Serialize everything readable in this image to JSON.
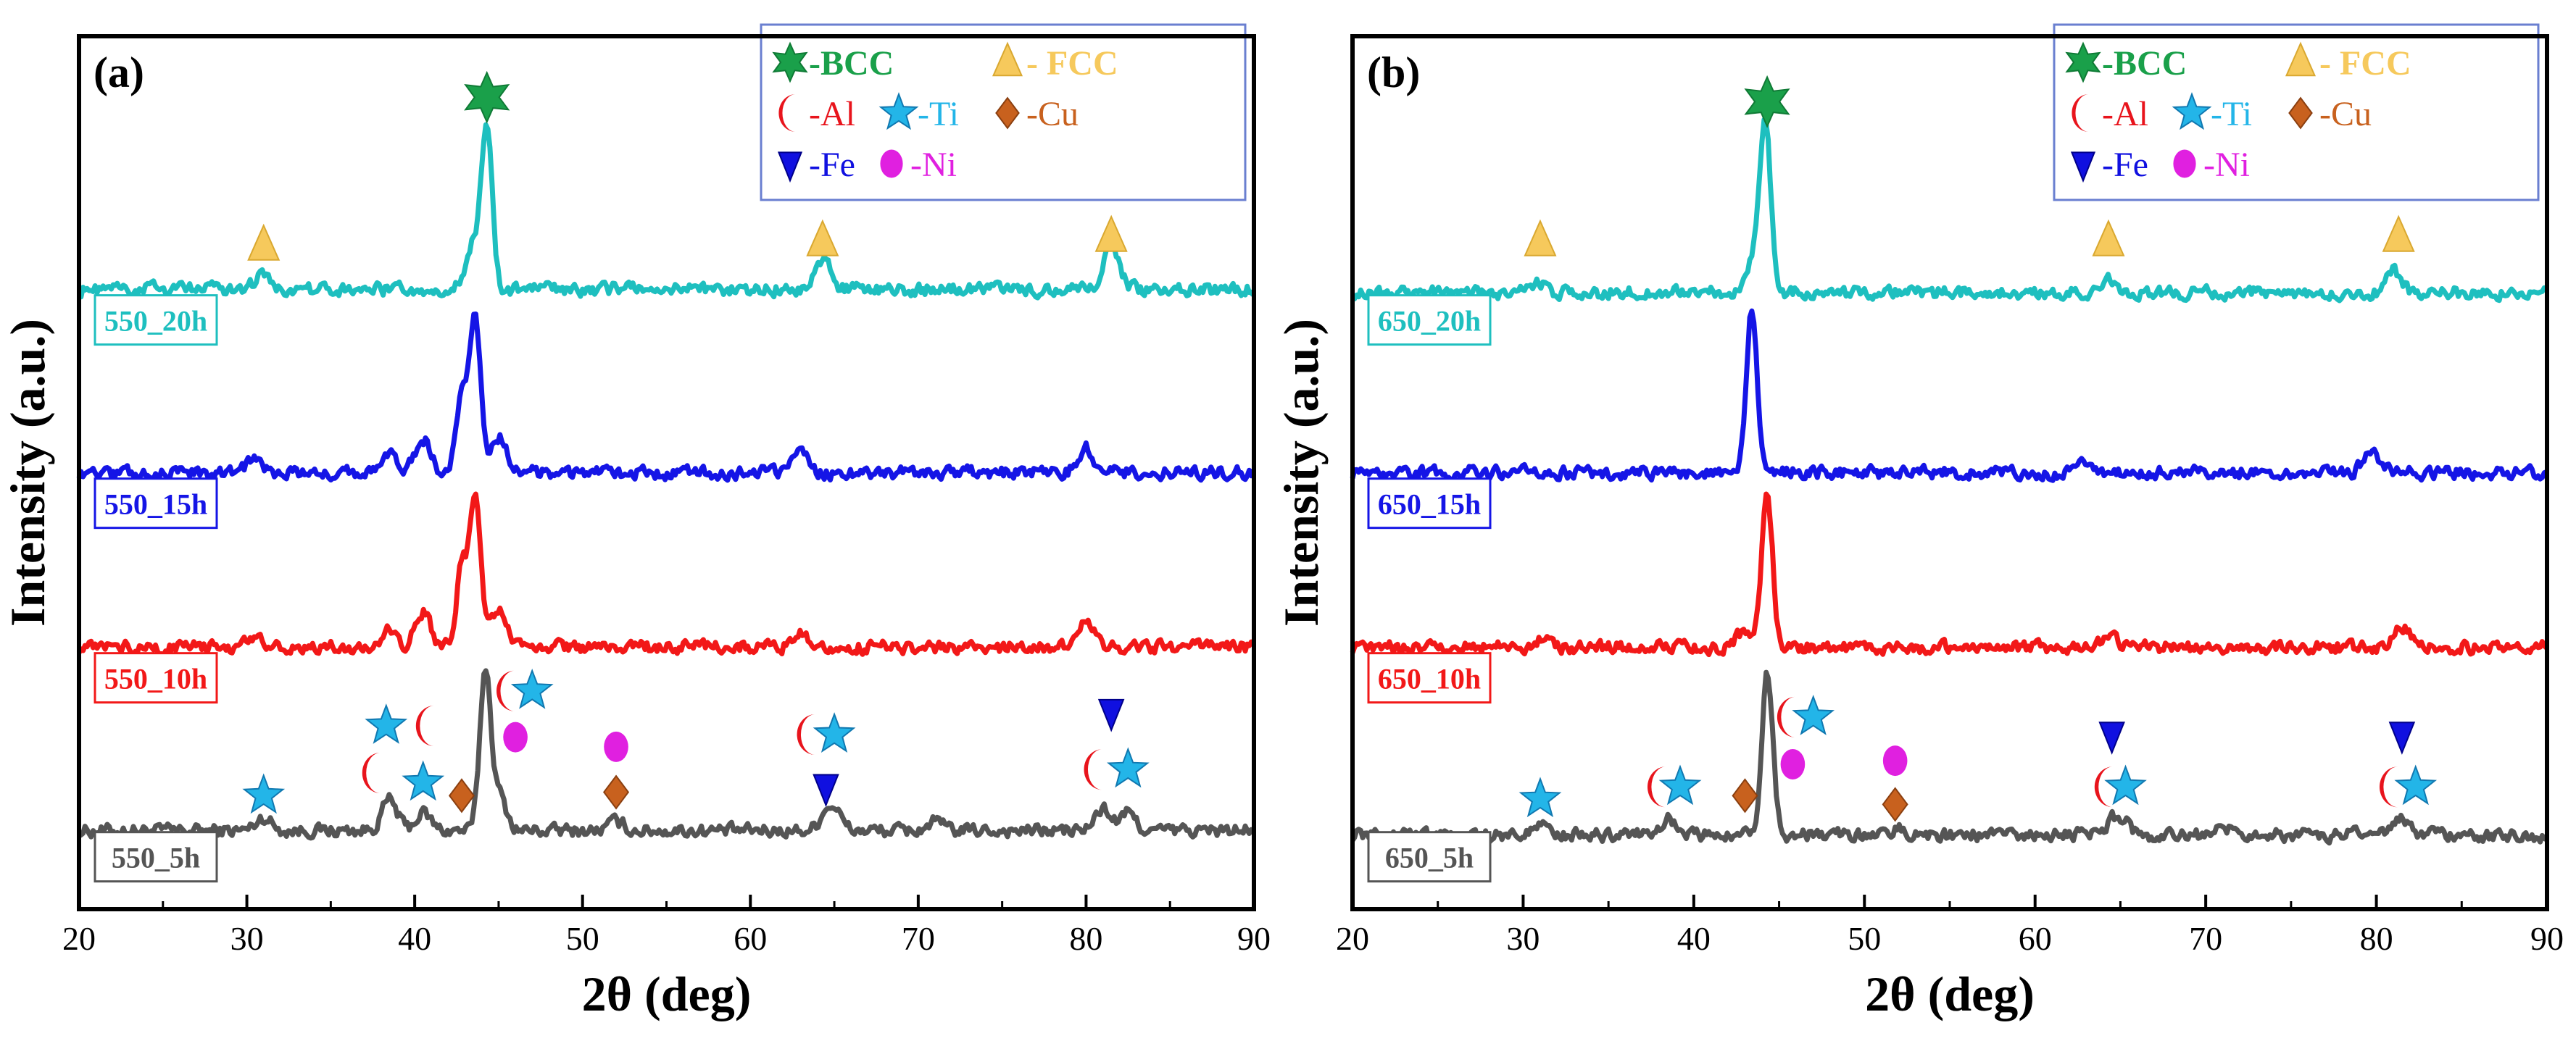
{
  "chart_data": [
    {
      "type": "line",
      "panel_label": "(a)",
      "xlabel": "2θ (deg)",
      "ylabel": "Intensity (a.u.)",
      "xlim": [
        20,
        90
      ],
      "ylim": [
        0,
        100
      ],
      "xticks": [
        20,
        30,
        40,
        50,
        60,
        70,
        80,
        90
      ],
      "legend": {
        "position": "top-right",
        "entries": [
          {
            "marker": "bcc",
            "label": "-BCC",
            "color": "#1aa04a"
          },
          {
            "marker": "fcc",
            "label": "- FCC",
            "color": "#f6c95c"
          },
          {
            "marker": "al",
            "label": "-Al",
            "color": "#e8141c"
          },
          {
            "marker": "ti",
            "label": "-Ti",
            "color": "#23b5e8"
          },
          {
            "marker": "cu",
            "label": "-Cu",
            "color": "#c8611e"
          },
          {
            "marker": "fe",
            "label": "-Fe",
            "color": "#1010e0"
          },
          {
            "marker": "ni",
            "label": "-Ni",
            "color": "#e020e0"
          }
        ]
      },
      "series": [
        {
          "name": "550_5h",
          "color": "#555555",
          "baseline": 9,
          "label_y": 6,
          "peaks": [
            [
              31,
              1.5
            ],
            [
              38.5,
              3.5
            ],
            [
              40.5,
              2
            ],
            [
              44.2,
              18
            ],
            [
              45,
              4
            ],
            [
              52,
              1
            ],
            [
              64.5,
              1.5
            ],
            [
              65,
              2
            ],
            [
              71,
              1
            ],
            [
              81,
              2.5
            ],
            [
              82.5,
              2
            ]
          ]
        },
        {
          "name": "550_10h",
          "color": "#f21818",
          "baseline": 30,
          "label_y": 26.5,
          "peaks": [
            [
              30.5,
              1.5
            ],
            [
              38.5,
              2
            ],
            [
              40.5,
              4
            ],
            [
              42.8,
              9
            ],
            [
              43.6,
              17.5
            ],
            [
              45,
              4
            ],
            [
              63,
              2
            ],
            [
              80,
              3
            ]
          ]
        },
        {
          "name": "550_15h",
          "color": "#1515e6",
          "baseline": 50,
          "label_y": 46.5,
          "peaks": [
            [
              30.5,
              1.5
            ],
            [
              38.5,
              2
            ],
            [
              40.5,
              4
            ],
            [
              42.8,
              9
            ],
            [
              43.6,
              18.4
            ],
            [
              45,
              4
            ],
            [
              63,
              2
            ],
            [
              80,
              3
            ]
          ]
        },
        {
          "name": "550_20h",
          "color": "#1ebfbf",
          "baseline": 71,
          "label_y": 67.5,
          "peaks": [
            [
              31,
              2
            ],
            [
              43.5,
              5
            ],
            [
              44.3,
              18
            ],
            [
              64.3,
              3.5
            ],
            [
              81.5,
              5.5
            ]
          ]
        }
      ],
      "markers": [
        {
          "type": "bcc",
          "x": 44.3,
          "y": 93
        },
        {
          "type": "fcc",
          "x": 31,
          "y": 76
        },
        {
          "type": "fcc",
          "x": 64.3,
          "y": 76.5
        },
        {
          "type": "fcc",
          "x": 81.5,
          "y": 77
        },
        {
          "type": "ti",
          "x": 31,
          "y": 13
        },
        {
          "type": "al",
          "x": 37.6,
          "y": 15.6
        },
        {
          "type": "ti",
          "x": 40.5,
          "y": 14.5
        },
        {
          "type": "cu",
          "x": 42.8,
          "y": 13
        },
        {
          "type": "ti",
          "x": 38.3,
          "y": 21
        },
        {
          "type": "al",
          "x": 40.8,
          "y": 21
        },
        {
          "type": "al",
          "x": 45.6,
          "y": 25
        },
        {
          "type": "ti",
          "x": 47,
          "y": 25
        },
        {
          "type": "ni",
          "x": 46,
          "y": 19.7
        },
        {
          "type": "ni",
          "x": 52,
          "y": 18.6
        },
        {
          "type": "cu",
          "x": 52,
          "y": 13.4
        },
        {
          "type": "al",
          "x": 63.5,
          "y": 20
        },
        {
          "type": "ti",
          "x": 65,
          "y": 20
        },
        {
          "type": "fe",
          "x": 64.5,
          "y": 14
        },
        {
          "type": "fe",
          "x": 81.5,
          "y": 22.6
        },
        {
          "type": "al",
          "x": 80.6,
          "y": 16
        },
        {
          "type": "ti",
          "x": 82.5,
          "y": 16
        }
      ]
    },
    {
      "type": "line",
      "panel_label": "(b)",
      "xlabel": "2θ (deg)",
      "ylabel": "Intensity (a.u.)",
      "xlim": [
        20,
        90
      ],
      "ylim": [
        0,
        100
      ],
      "xticks": [
        20,
        30,
        40,
        50,
        60,
        70,
        80,
        90
      ],
      "legend": {
        "position": "top-right",
        "entries": [
          {
            "marker": "bcc",
            "label": "-BCC",
            "color": "#1aa04a"
          },
          {
            "marker": "fcc",
            "label": "- FCC",
            "color": "#f6c95c"
          },
          {
            "marker": "al",
            "label": "-Al",
            "color": "#e8141c"
          },
          {
            "marker": "ti",
            "label": "-Ti",
            "color": "#23b5e8"
          },
          {
            "marker": "cu",
            "label": "-Cu",
            "color": "#c8611e"
          },
          {
            "marker": "fe",
            "label": "-Fe",
            "color": "#1010e0"
          },
          {
            "marker": "ni",
            "label": "-Ni",
            "color": "#e020e0"
          }
        ]
      },
      "series": [
        {
          "name": "650_5h",
          "color": "#555555",
          "baseline": 8.5,
          "label_y": 6,
          "peaks": [
            [
              31,
              1.5
            ],
            [
              38.5,
              2
            ],
            [
              44.3,
              18.5
            ],
            [
              52,
              0.8
            ],
            [
              64.6,
              1.5
            ],
            [
              65.2,
              1.2
            ],
            [
              71,
              0.8
            ],
            [
              81.3,
              2
            ]
          ]
        },
        {
          "name": "650_10h",
          "color": "#f21818",
          "baseline": 30,
          "label_y": 26.5,
          "peaks": [
            [
              31,
              1
            ],
            [
              43,
              2
            ],
            [
              44.3,
              17.5
            ],
            [
              64.3,
              1.5
            ],
            [
              81.5,
              2.5
            ]
          ]
        },
        {
          "name": "650_15h",
          "color": "#1515e6",
          "baseline": 50,
          "label_y": 46.5,
          "peaks": [
            [
              30.5,
              0.6
            ],
            [
              43.4,
              18.5
            ],
            [
              63,
              1.5
            ],
            [
              79.7,
              2.5
            ]
          ]
        },
        {
          "name": "650_20h",
          "color": "#1ebfbf",
          "baseline": 70.6,
          "label_y": 67.5,
          "peaks": [
            [
              31,
              1
            ],
            [
              43.6,
              4
            ],
            [
              44.2,
              18.5
            ],
            [
              64.3,
              1.5
            ],
            [
              81,
              2.5
            ]
          ]
        }
      ],
      "markers": [
        {
          "type": "bcc",
          "x": 44.3,
          "y": 92.5
        },
        {
          "type": "fcc",
          "x": 31,
          "y": 76.5
        },
        {
          "type": "fcc",
          "x": 64.3,
          "y": 76.5
        },
        {
          "type": "fcc",
          "x": 81.3,
          "y": 77
        },
        {
          "type": "ti",
          "x": 31,
          "y": 12.6
        },
        {
          "type": "al",
          "x": 38,
          "y": 14
        },
        {
          "type": "ti",
          "x": 39.2,
          "y": 14
        },
        {
          "type": "cu",
          "x": 43,
          "y": 13
        },
        {
          "type": "al",
          "x": 45.6,
          "y": 22
        },
        {
          "type": "ti",
          "x": 47,
          "y": 22
        },
        {
          "type": "ni",
          "x": 45.8,
          "y": 16.6
        },
        {
          "type": "ni",
          "x": 51.8,
          "y": 17
        },
        {
          "type": "cu",
          "x": 51.8,
          "y": 12
        },
        {
          "type": "fe",
          "x": 64.5,
          "y": 20
        },
        {
          "type": "al",
          "x": 64.2,
          "y": 14
        },
        {
          "type": "ti",
          "x": 65.3,
          "y": 14
        },
        {
          "type": "fe",
          "x": 81.5,
          "y": 20
        },
        {
          "type": "al",
          "x": 80.9,
          "y": 14
        },
        {
          "type": "ti",
          "x": 82.3,
          "y": 14
        }
      ]
    }
  ]
}
